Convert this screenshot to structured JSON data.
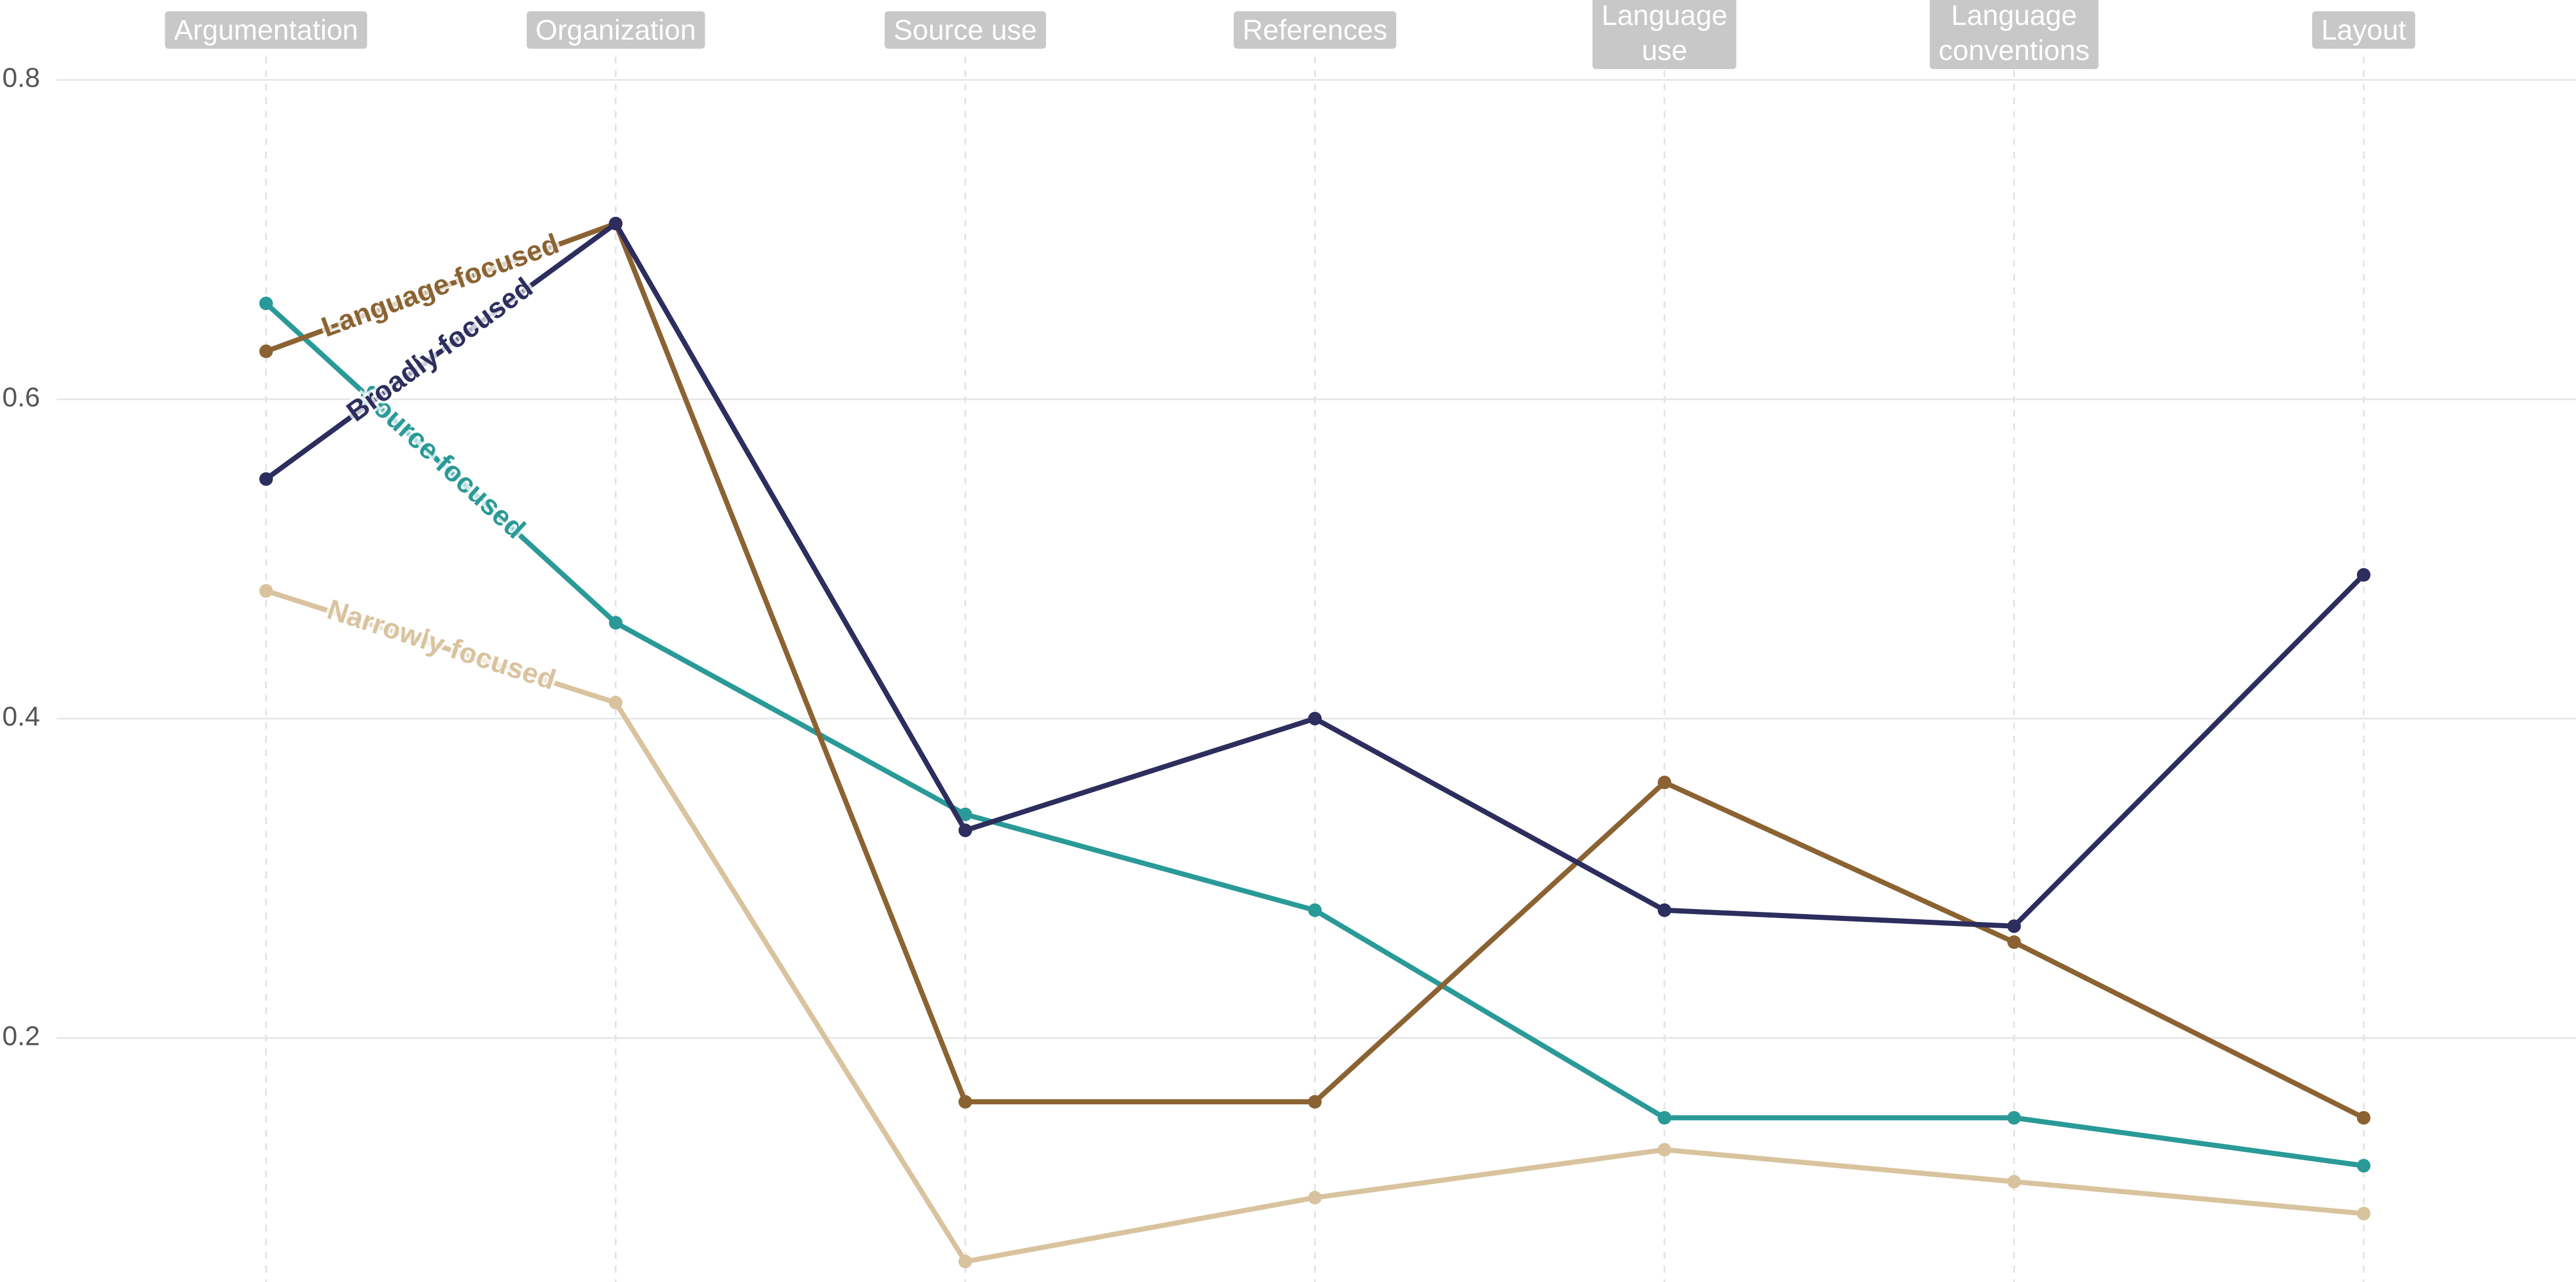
{
  "chart_data": {
    "type": "line",
    "categories": [
      "Argumentation",
      "Organization",
      "Source use",
      "References",
      "Language\nuse",
      "Language\nconventions",
      "Layout"
    ],
    "series": [
      {
        "name": "Narrowly focused",
        "color": "#d9c39e",
        "values": [
          0.48,
          0.41,
          0.06,
          0.1,
          0.13,
          0.11,
          0.09
        ]
      },
      {
        "name": "Source focused",
        "color": "#2a9a98",
        "values": [
          0.66,
          0.46,
          0.34,
          0.28,
          0.15,
          0.15,
          0.12
        ]
      },
      {
        "name": "Language focused",
        "color": "#8b6332",
        "values": [
          0.63,
          0.71,
          0.16,
          0.16,
          0.36,
          0.26,
          0.15
        ]
      },
      {
        "name": "Broadly focused",
        "color": "#2d2d5e",
        "values": [
          0.55,
          0.71,
          0.33,
          0.4,
          0.28,
          0.27,
          0.49
        ]
      }
    ],
    "ylim": [
      0.05,
      0.85
    ],
    "yticks": [
      0.2,
      0.4,
      0.6,
      0.8
    ],
    "grid": true
  }
}
